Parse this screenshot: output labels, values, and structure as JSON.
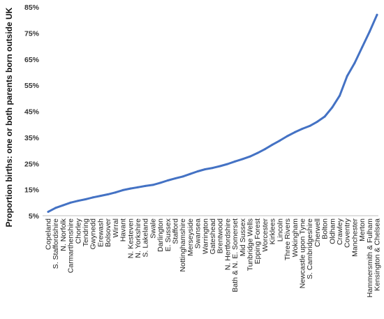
{
  "chart_data": {
    "type": "line",
    "ylabel": "Proportion births: one or both parents born outside UK",
    "xlabel": "",
    "title": "",
    "ylim": [
      5,
      85
    ],
    "y_ticks": [
      "5%",
      "15%",
      "25%",
      "35%",
      "45%",
      "55%",
      "65%",
      "75%",
      "85%"
    ],
    "categories": [
      "Copeland",
      "S. Staffordshire",
      "N. Norfolk",
      "Carmarthenshire",
      "Chorley",
      "Tendring",
      "Gwynedd",
      "Erewash",
      "Bolsover",
      "Wirral",
      "Havant",
      "N. Kesteven",
      "N. Yorkshire",
      "S. Lakeland",
      "Swale",
      "Darlington",
      "E. Sussex",
      "Stafford",
      "Nottinghamshire",
      "Merseyside",
      "Swansea",
      "Warrington",
      "Gateshead",
      "Brentwood",
      "N. Hertfordshire",
      "Bath & N. E. Somerset",
      "Mid Sussex",
      "Tunbridge Wells",
      "Epping Forest",
      "Worcester",
      "Kirklees",
      "Lincoln",
      "Three Rivers",
      "Wokingham",
      "Newcastle upon Tyne",
      "S. Cambridgeshire",
      "Cherwell",
      "Bolton",
      "Oldham",
      "Crawley",
      "Coventry",
      "Manchester",
      "Merton",
      "Hammersmith & Fulham",
      "Kensington & Chelsea"
    ],
    "series": [
      {
        "color": "#4472C4",
        "values": [
          6.5,
          8,
          9,
          10,
          10.7,
          11.3,
          12,
          12.6,
          13.2,
          13.9,
          14.8,
          15.4,
          15.9,
          16.4,
          16.8,
          17.6,
          18.5,
          19.3,
          20.0,
          21.0,
          22.0,
          22.8,
          23.3,
          24.0,
          24.8,
          25.8,
          26.7,
          27.7,
          29.0,
          30.5,
          32.2,
          33.8,
          35.5,
          37.0,
          38.3,
          39.4,
          41.0,
          43.0,
          46.5,
          51.0,
          58.5,
          63.5,
          69.5,
          75.5,
          82.0
        ]
      }
    ]
  }
}
